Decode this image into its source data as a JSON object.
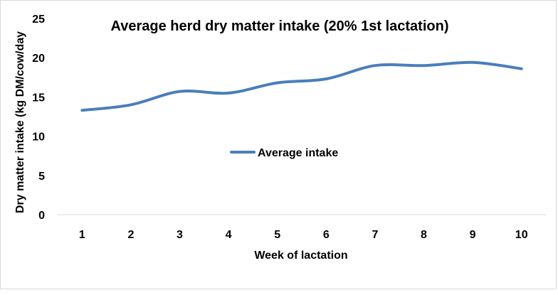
{
  "chart_data": {
    "type": "line",
    "title": "Average herd dry matter intake (20% 1st lactation)",
    "xlabel": "Week of lactation",
    "ylabel": "Dry matter intake (kg DM/cow/day",
    "categories": [
      "1",
      "2",
      "3",
      "4",
      "5",
      "6",
      "7",
      "8",
      "9",
      "10"
    ],
    "yticks": [
      "0",
      "5",
      "10",
      "15",
      "20",
      "25"
    ],
    "ylim": [
      0,
      25
    ],
    "grid": false,
    "legend_position": "center",
    "series": [
      {
        "name": "Average intake",
        "color": "#4a7ebb",
        "values": [
          13.3,
          14.0,
          15.7,
          15.5,
          16.8,
          17.3,
          19.0,
          19.0,
          19.4,
          18.6
        ]
      }
    ]
  }
}
